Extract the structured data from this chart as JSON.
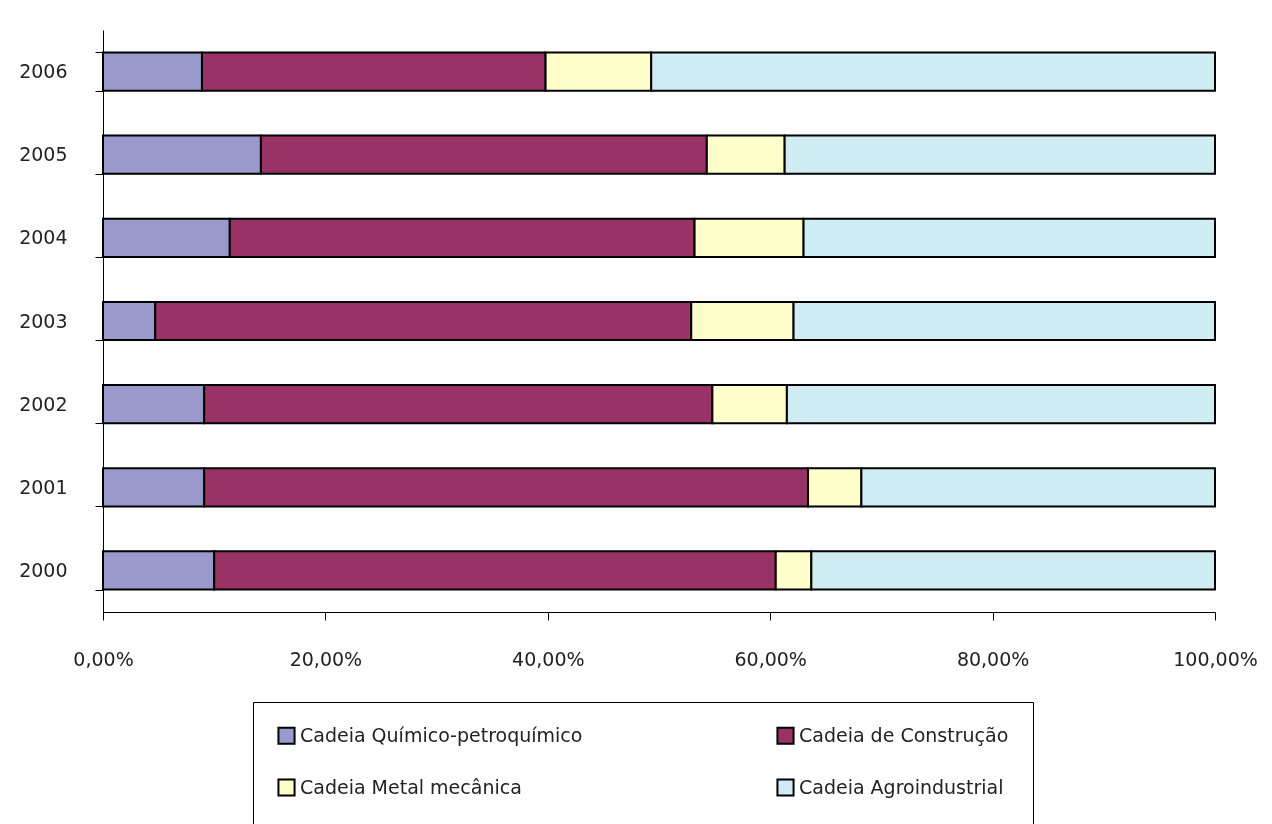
{
  "chart_data": {
    "type": "bar",
    "orientation": "horizontal",
    "stacked": true,
    "categories": [
      "2006",
      "2005",
      "2004",
      "2003",
      "2002",
      "2001",
      "2000"
    ],
    "series": [
      {
        "name": "Cadeia Químico-petroquímico",
        "color": "#9999cc",
        "values": [
          8.9,
          14.2,
          11.4,
          4.7,
          9.1,
          9.1,
          10.0
        ]
      },
      {
        "name": "Cadeia de Construção",
        "color": "#993366",
        "values": [
          30.9,
          40.1,
          41.8,
          48.2,
          45.7,
          54.3,
          50.5
        ]
      },
      {
        "name": "Cadeia Metal mecânica",
        "color": "#ffffcc",
        "values": [
          9.5,
          7.0,
          9.8,
          9.2,
          6.7,
          4.8,
          3.2
        ]
      },
      {
        "name": "Cadeia Agroindustrial",
        "color": "#cfecf3",
        "values": [
          50.7,
          38.7,
          37.0,
          37.9,
          38.5,
          31.8,
          36.3
        ]
      }
    ],
    "xlim": [
      0,
      100
    ],
    "xticks": [
      {
        "value": 0,
        "label": "0,00%"
      },
      {
        "value": 20,
        "label": "20,00%"
      },
      {
        "value": 40,
        "label": "40,00%"
      },
      {
        "value": 60,
        "label": "60,00%"
      },
      {
        "value": 80,
        "label": "80,00%"
      },
      {
        "value": 100,
        "label": "100,00%"
      }
    ],
    "grid": false,
    "legend": "bottom"
  }
}
